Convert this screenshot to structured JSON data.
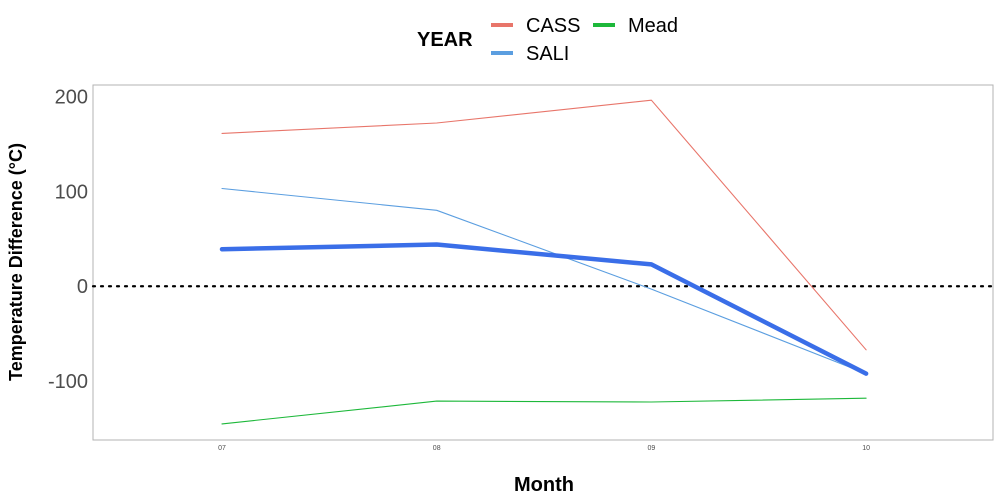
{
  "chart_data": {
    "type": "line",
    "xlabel": "Month",
    "ylabel": "Temperature Difference (°C)",
    "categories": [
      "07",
      "08",
      "09",
      "10"
    ],
    "yticks": [
      200,
      100,
      0,
      -100
    ],
    "ylim": [
      -162,
      212
    ],
    "reference_line": {
      "y": 0,
      "style": "dotted"
    },
    "legend": {
      "title": "YEAR",
      "position": "top",
      "entries": [
        {
          "name": "CASS",
          "color": "#e8756a"
        },
        {
          "name": "SALI",
          "color": "#5b9ee0"
        },
        {
          "name": "Mead",
          "color": "#1db83a"
        }
      ]
    },
    "series": [
      {
        "name": "CASS",
        "color": "#e8756a",
        "emphasis": false,
        "values": [
          161,
          172,
          196,
          -67
        ]
      },
      {
        "name": "SALI",
        "color": "#5b9ee0",
        "emphasis": false,
        "values": [
          103,
          80,
          -3,
          -92
        ]
      },
      {
        "name": "SALI",
        "color": "#3a6ee8",
        "emphasis": true,
        "values": [
          39,
          44,
          23,
          -92
        ]
      },
      {
        "name": "Mead",
        "color": "#1db83a",
        "emphasis": false,
        "values": [
          -145,
          -121,
          -122,
          -118
        ]
      }
    ]
  }
}
